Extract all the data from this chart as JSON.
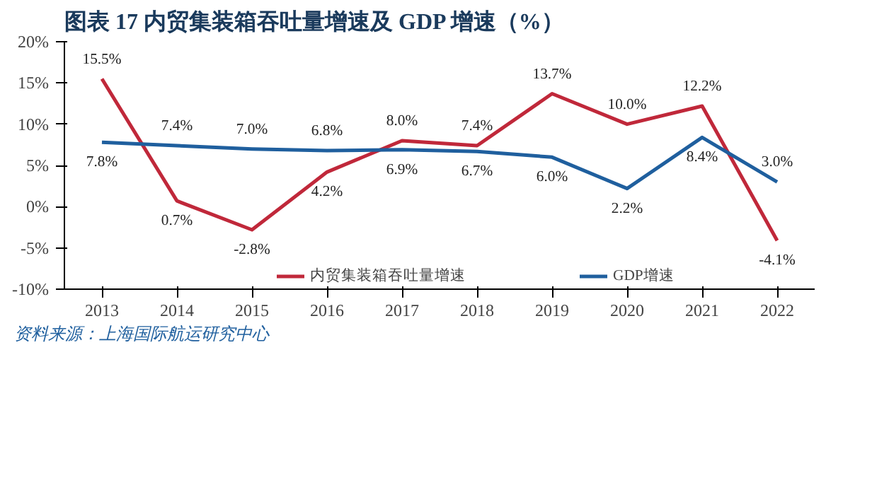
{
  "chart_data": {
    "type": "line",
    "title": "图表 17 内贸集装箱吞吐量增速及 GDP 增速（%）",
    "categories": [
      "2013",
      "2014",
      "2015",
      "2016",
      "2017",
      "2018",
      "2019",
      "2020",
      "2021",
      "2022"
    ],
    "series": [
      {
        "name": "内贸集装箱吞吐量增速",
        "color": "#c0283a",
        "values": [
          15.5,
          0.7,
          -2.8,
          4.2,
          8.0,
          7.4,
          13.7,
          10.0,
          12.2,
          -4.1
        ],
        "value_labels": [
          "15.5%",
          "0.7%",
          "-2.8%",
          "4.2%",
          "8.0%",
          "7.4%",
          "13.7%",
          "10.0%",
          "12.2%",
          "-4.1%"
        ]
      },
      {
        "name": "GDP增速",
        "color": "#1f5f9e",
        "values": [
          7.8,
          7.4,
          7.0,
          6.8,
          6.9,
          6.7,
          6.0,
          2.2,
          8.4,
          3.0
        ],
        "value_labels": [
          "7.8%",
          "7.4%",
          "7.0%",
          "6.8%",
          "6.9%",
          "6.7%",
          "6.0%",
          "2.2%",
          "8.4%",
          "3.0%"
        ]
      }
    ],
    "ylim": [
      -10,
      20
    ],
    "yticks": [
      {
        "value": -10,
        "label": "-10%"
      },
      {
        "value": -5,
        "label": "-5%"
      },
      {
        "value": 0,
        "label": "0%"
      },
      {
        "value": 5,
        "label": "5%"
      },
      {
        "value": 10,
        "label": "10%"
      },
      {
        "value": 15,
        "label": "15%"
      },
      {
        "value": 20,
        "label": "20%"
      }
    ],
    "grid": false,
    "legend": "bottom",
    "marker": "none",
    "line_style": "solid",
    "annotations": [
      "资料来源：上海国际航运研究中心"
    ]
  }
}
